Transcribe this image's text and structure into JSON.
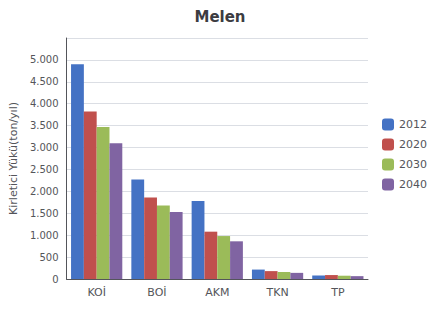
{
  "chart_data": {
    "type": "bar",
    "title": "Melen",
    "categories": [
      "KOİ",
      "BOİ",
      "AKM",
      "TKN",
      "TP"
    ],
    "series": [
      {
        "name": "2012",
        "color": "#4472C4",
        "values": [
          4900,
          2270,
          1780,
          215,
          80
        ]
      },
      {
        "name": "2020",
        "color": "#C0504D",
        "values": [
          3820,
          1860,
          1080,
          180,
          90
        ]
      },
      {
        "name": "2030",
        "color": "#9BBB59",
        "values": [
          3470,
          1680,
          980,
          160,
          75
        ]
      },
      {
        "name": "2040",
        "color": "#8064A2",
        "values": [
          3100,
          1530,
          860,
          140,
          65
        ]
      }
    ],
    "ylabel": "Kirletici Yükü(ton/yıl)",
    "ylim": [
      0,
      5500
    ],
    "yticks": [
      0,
      500,
      {
        "value": 1000,
        "label": "1.000"
      },
      {
        "value": 1500,
        "label": "1.500"
      },
      {
        "value": 2000,
        "label": "2.000"
      },
      {
        "value": 2500,
        "label": "2.500"
      },
      {
        "value": 3000,
        "label": "3.000"
      },
      {
        "value": 3500,
        "label": "3.500"
      },
      {
        "value": 4000,
        "label": "4.000"
      },
      {
        "value": 4500,
        "label": "4.500"
      },
      {
        "value": 5000,
        "label": "5.000"
      }
    ],
    "grid": true,
    "legend": "right"
  }
}
